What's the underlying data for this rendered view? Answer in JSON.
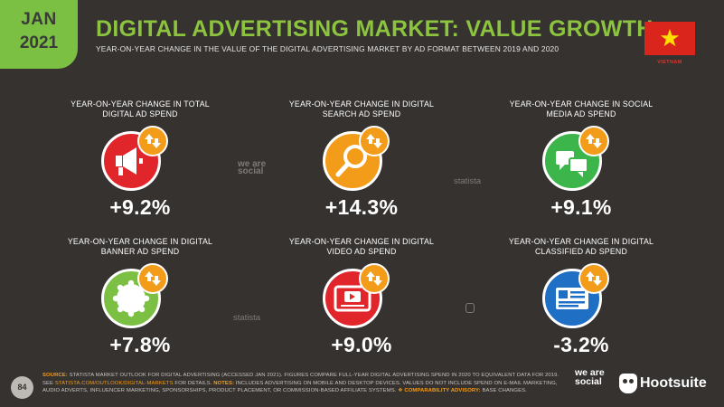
{
  "header": {
    "badge_month": "JAN",
    "badge_year": "2021",
    "title": "DIGITAL ADVERTISING MARKET: VALUE GROWTH",
    "subtitle": "YEAR-ON-YEAR CHANGE IN THE VALUE OF THE DIGITAL ADVERTISING MARKET BY AD FORMAT BETWEEN 2019 AND 2020",
    "country": "VIETNAM"
  },
  "metrics": [
    {
      "label": "YEAR-ON-YEAR CHANGE IN TOTAL DIGITAL AD SPEND",
      "value": "+9.2%",
      "icon": "megaphone-icon",
      "color": "#e0262b"
    },
    {
      "label": "YEAR-ON-YEAR CHANGE IN DIGITAL SEARCH AD SPEND",
      "value": "+14.3%",
      "icon": "magnifier-icon",
      "color": "#f39c19"
    },
    {
      "label": "YEAR-ON-YEAR CHANGE IN SOCIAL MEDIA AD SPEND",
      "value": "+9.1%",
      "icon": "speech-bubbles-icon",
      "color": "#3cb54a"
    },
    {
      "label": "YEAR-ON-YEAR CHANGE IN DIGITAL BANNER AD SPEND",
      "value": "+7.8%",
      "icon": "banner-seal-icon",
      "color": "#7bc043"
    },
    {
      "label": "YEAR-ON-YEAR CHANGE IN DIGITAL VIDEO AD SPEND",
      "value": "+9.0%",
      "icon": "video-player-icon",
      "color": "#e0262b"
    },
    {
      "label": "YEAR-ON-YEAR CHANGE IN DIGITAL CLASSIFIED AD SPEND",
      "value": "-3.2%",
      "icon": "classified-card-icon",
      "color": "#1f6fc5"
    }
  ],
  "arrow_badge_color": "#f39c19",
  "watermarks": {
    "we_are_social": "we are social",
    "statista": "statista"
  },
  "footer": {
    "page_number": "84",
    "source_label": "SOURCE:",
    "source_text": "STATISTA MARKET OUTLOOK FOR DIGITAL ADVERTISING (ACCESSED JAN 2021). FIGURES COMPARE FULL-YEAR DIGITAL ADVERTISING SPEND IN 2020 TO EQUIVALENT DATA FOR 2019.",
    "see_text": "SEE",
    "url": "STATISTA.COM/OUTLOOK/DIGITAL-MARKETS",
    "for_details": "FOR DETAILS.",
    "notes_label": "NOTES:",
    "notes_text": "INCLUDES ADVERTISING ON MOBILE AND DESKTOP DEVICES. VALUES DO NOT INCLUDE SPEND ON E-MAIL MARKETING, AUDIO ADVERTS, INFLUENCER MARKETING, SPONSORSHIPS, PRODUCT PLACEMENT, OR COMMISSION-BASED AFFILIATE SYSTEMS.",
    "advisory_label": "COMPARABILITY ADVISORY:",
    "advisory_text": "BASE CHANGES."
  },
  "logos": {
    "we_are_social": "we are social",
    "hootsuite": "Hootsuite"
  }
}
